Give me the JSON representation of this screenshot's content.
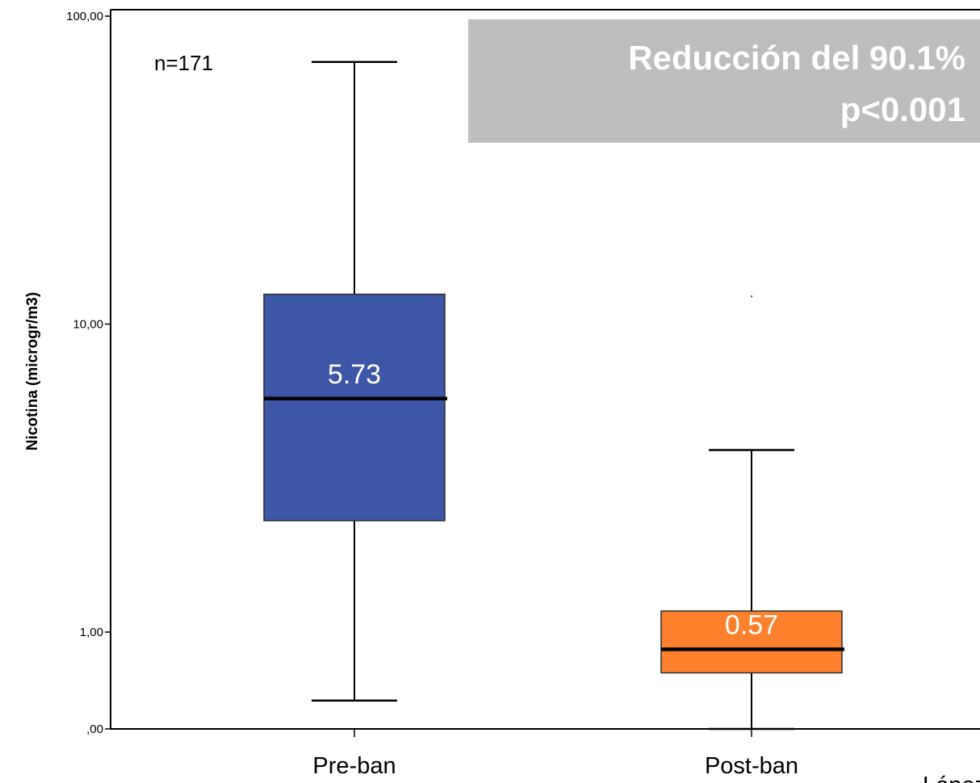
{
  "chart_data": {
    "type": "box",
    "ylabel": "Nicotina (microgr/m3)",
    "y_scale": "log",
    "y_ticks": [
      {
        "value": 0,
        "label": ",00"
      },
      {
        "value": 1,
        "label": "1,00"
      },
      {
        "value": 10,
        "label": "10,00"
      },
      {
        "value": 100,
        "label": "100,00"
      }
    ],
    "categories": [
      "Pre-ban",
      "Post-ban"
    ],
    "series": [
      {
        "category": "Pre-ban",
        "color": "#3d57a8",
        "whisker_low": 0.03,
        "q1": 2.3,
        "median": 5.73,
        "q3": 12.5,
        "whisker_high": 71,
        "median_label": "5.73",
        "outliers": []
      },
      {
        "category": "Post-ban",
        "color": "#fd812c",
        "whisker_low": 0.0,
        "q1": 0.21,
        "median": 0.57,
        "q3": 1.17,
        "whisker_high": 3.9,
        "median_label": "0.57",
        "outliers": [
          12.3
        ]
      }
    ],
    "sample_size": "n=171",
    "annotation": {
      "line1": "Reducción del 90.1%",
      "line2": "p<0.001",
      "background": "#bdbdbd"
    },
    "citation": "López"
  }
}
